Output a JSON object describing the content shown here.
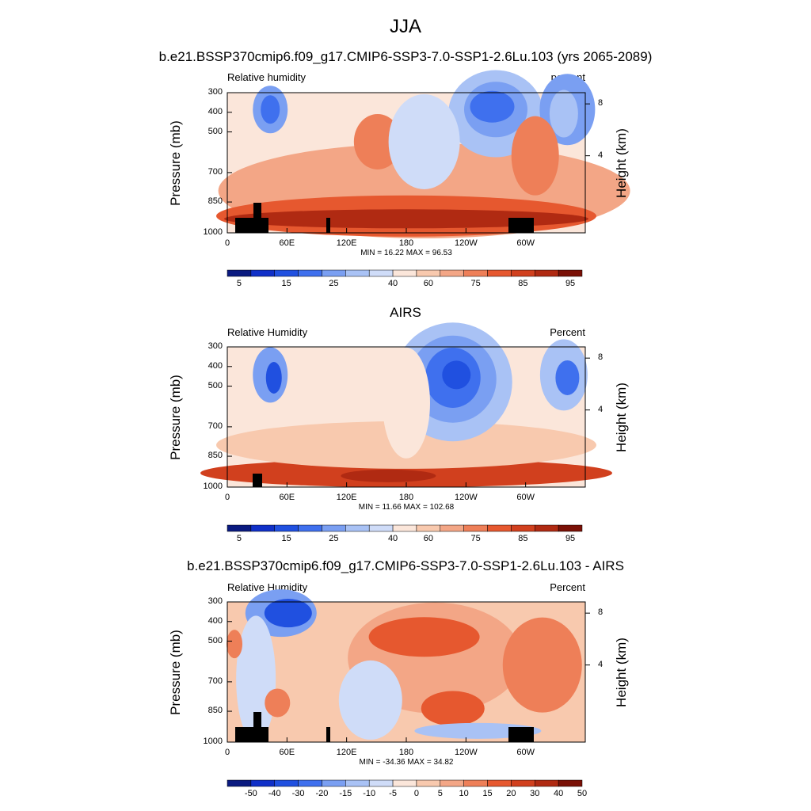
{
  "main_title": "JJA",
  "pressure_ticks": [
    "300",
    "400",
    "500",
    "700",
    "850",
    "1000"
  ],
  "height_ticks": [
    "8",
    "4"
  ],
  "lon_ticks": [
    "0",
    "60E",
    "120E",
    "180",
    "120W",
    "60W"
  ],
  "ylabel": "Pressure (mb)",
  "ylabel_right": "Height (km)",
  "panels": [
    {
      "title": "b.e21.BSSP370cmip6.f09_g17.CMIP6-SSP3-7.0-SSP1-2.6Lu.103 (yrs 2065-2089)",
      "left_label": "Relative humidity",
      "right_label": "percent",
      "minmax": "MIN =  16.22  MAX =  96.53",
      "cb_labels": [
        "5",
        "15",
        "25",
        "40",
        "60",
        "75",
        "85",
        "95"
      ]
    },
    {
      "title": "AIRS",
      "left_label": "Relative Humidity",
      "right_label": "Percent",
      "minmax": "MIN =  11.66  MAX = 102.68",
      "cb_labels": [
        "5",
        "15",
        "25",
        "40",
        "60",
        "75",
        "85",
        "95"
      ]
    },
    {
      "title": "b.e21.BSSP370cmip6.f09_g17.CMIP6-SSP3-7.0-SSP1-2.6Lu.103 - AIRS",
      "left_label": "Relative Humidity",
      "right_label": "Percent",
      "minmax": "MIN = -34.36  MAX =  34.82",
      "cb_labels": [
        "-50",
        "-40",
        "-30",
        "-20",
        "-15",
        "-10",
        "-5",
        "0",
        "5",
        "10",
        "15",
        "20",
        "30",
        "40",
        "50"
      ]
    }
  ],
  "colors": {
    "cb_ramp_abs": [
      "#0a1a80",
      "#1030c8",
      "#2050e0",
      "#3f70ee",
      "#7a9ff2",
      "#a9c2f5",
      "#cfdcf8",
      "#fbe6da",
      "#f8c9ae",
      "#f3a686",
      "#ee7f58",
      "#e6582f",
      "#d1401e",
      "#b02a12",
      "#7a1006"
    ],
    "cb_ramp_diff": [
      "#0a1a80",
      "#1030c8",
      "#2050e0",
      "#3f70ee",
      "#7a9ff2",
      "#a9c2f5",
      "#cfdcf8",
      "#fbe6da",
      "#f8c9ae",
      "#f3a686",
      "#ee7f58",
      "#e6582f",
      "#d1401e",
      "#b02a12",
      "#7a1006"
    ]
  }
}
